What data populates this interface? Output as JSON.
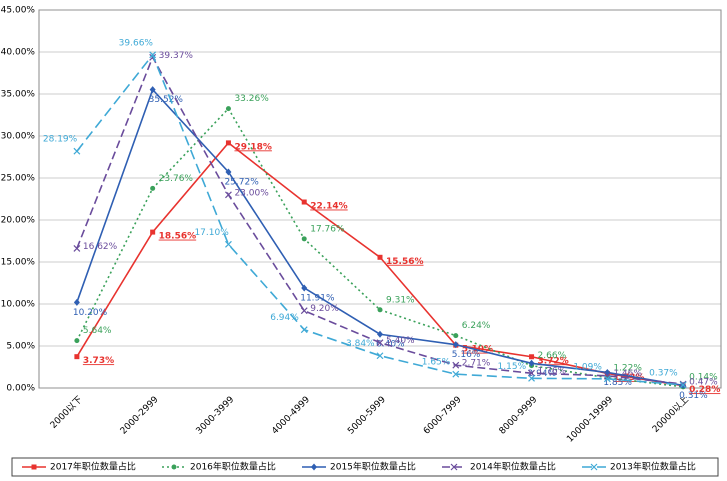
{
  "chart_data": {
    "type": "line",
    "categories": [
      "2000以下",
      "2000-2999",
      "3000-3999",
      "4000-4999",
      "5000-5999",
      "6000-7999",
      "8000-9999",
      "10000-19999",
      "20000以上"
    ],
    "series": [
      {
        "name": "2017年职位数量占比",
        "color": "#e8332f",
        "values": [
          3.73,
          18.56,
          29.18,
          22.14,
          15.56,
          5.1,
          3.72,
          1.73,
          0.28
        ],
        "value_labels": [
          "3.73%",
          "18.56%",
          "29.18%",
          "22.14%",
          "15.56%",
          "5.10%",
          "3.72%",
          "1.73%",
          "0.28%"
        ]
      },
      {
        "name": "2016年职位数量占比",
        "color": "#3aa15a",
        "values": [
          5.64,
          23.76,
          33.26,
          17.76,
          9.31,
          6.24,
          2.66,
          1.22,
          0.14
        ],
        "value_labels": [
          "5.64%",
          "23.76%",
          "33.26%",
          "17.76%",
          "9.31%",
          "6.24%",
          "2.66%",
          "1.22%",
          "0.14%"
        ]
      },
      {
        "name": "2015年职位数量占比",
        "color": "#2f5fb3",
        "values": [
          10.2,
          35.52,
          25.72,
          11.91,
          6.4,
          5.16,
          2.94,
          1.85,
          0.31
        ],
        "value_labels": [
          "10.20%",
          "35.52%",
          "25.72%",
          "11.91%",
          "6.40%",
          "5.16%",
          "2.94%",
          "1.85%",
          "0.31%"
        ]
      },
      {
        "name": "2014年职位数量占比",
        "color": "#6a4c9c",
        "values": [
          16.62,
          39.37,
          23.0,
          9.2,
          5.4,
          2.71,
          1.76,
          1.46,
          0.47
        ],
        "value_labels": [
          "16.62%",
          "39.37%",
          "23.00%",
          "9.20%",
          "5.40%",
          "2.71%",
          "1.76%",
          "1.46%",
          "0.47%"
        ]
      },
      {
        "name": "2013年职位数量占比",
        "color": "#3fa9d6",
        "values": [
          28.19,
          39.66,
          17.1,
          6.94,
          3.84,
          1.65,
          1.15,
          1.09,
          0.37
        ],
        "value_labels": [
          "28.19%",
          "39.66%",
          "17.10%",
          "6.94%",
          "3.84%",
          "1.65%",
          "1.15%",
          "1.09%",
          "0.37%"
        ]
      }
    ],
    "ylim": [
      0,
      45
    ],
    "yticks": [
      {
        "value": 0,
        "label": "0.00%"
      },
      {
        "value": 5,
        "label": "5.00%"
      },
      {
        "value": 10,
        "label": "10.00%"
      },
      {
        "value": 15,
        "label": "15.00%"
      },
      {
        "value": 20,
        "label": "20.00%"
      },
      {
        "value": 25,
        "label": "25.00%"
      },
      {
        "value": 30,
        "label": "30.00%"
      },
      {
        "value": 35,
        "label": "35.00%"
      },
      {
        "value": 40,
        "label": "40.00%"
      },
      {
        "value": 45,
        "label": "45.00%"
      }
    ],
    "grid": true,
    "legend": "bottom"
  }
}
